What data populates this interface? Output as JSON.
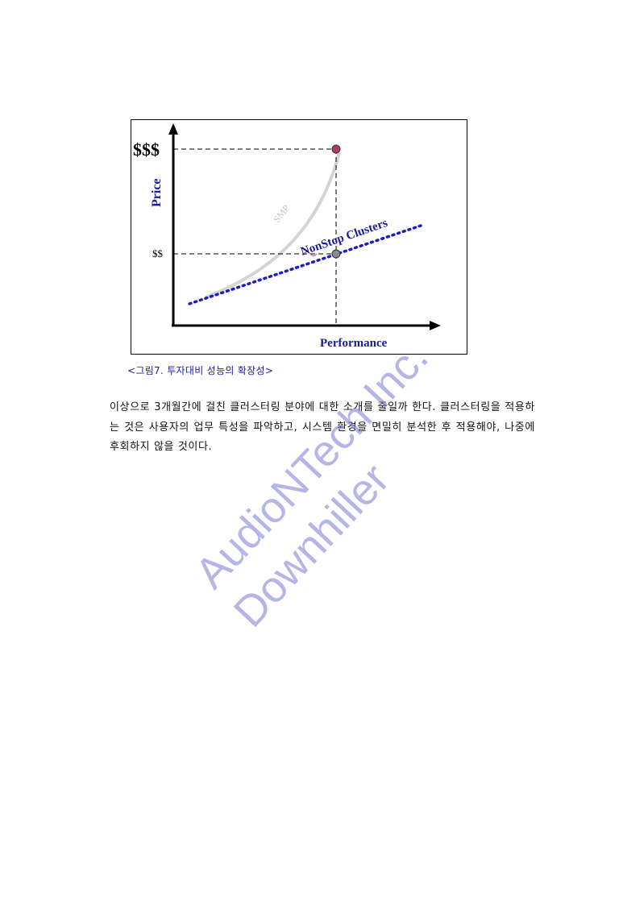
{
  "figure": {
    "y_axis_label": "Price",
    "x_axis_label": "Performance",
    "tick_high": "$$$",
    "tick_mid": "$$",
    "curve_smp": "SMP",
    "curve_nonstop": "NonStop Clusters",
    "colors": {
      "axis_label": "#1a1a9c",
      "nonstop_line": "#1c1cc8",
      "smp_curve": "#d4d4d4",
      "point_high": "#b23a6b",
      "point_mid": "#8a8a8a"
    }
  },
  "caption": "<그림7. 투자대비 성능의 확장성>",
  "body": {
    "paragraph": "이상으로 3개월간에 걸친 클러스터링 분야에 대한 소개를 줄일까 한다. 클러스터링을 적용하는 것은 사용자의 업무 특성을 파악하고, 시스템 환경을 면밀히 분석한 후 적용해야, 나중에 후회하지 않을 것이다."
  },
  "watermark": {
    "line1": "AudioNTech Inc.",
    "line2": "Downhiller"
  }
}
